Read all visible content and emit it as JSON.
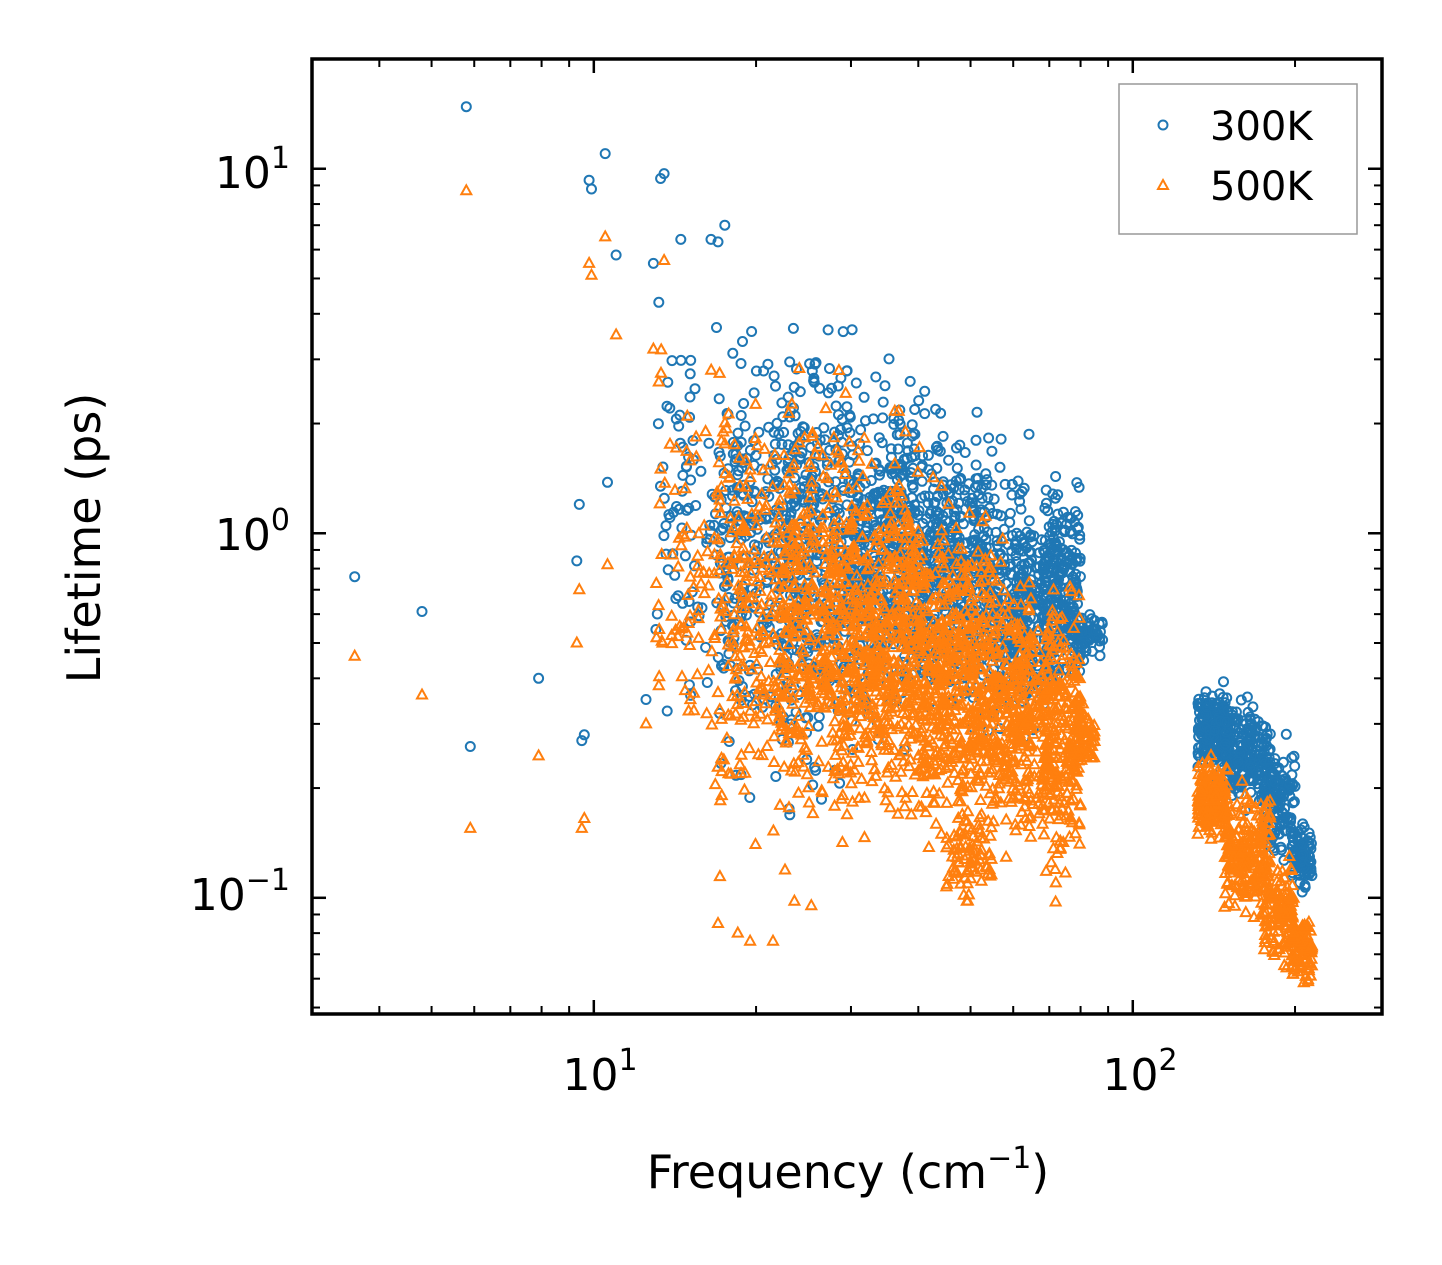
{
  "chart_data": {
    "type": "scatter",
    "title": "",
    "xlabel_main": "Frequency (cm",
    "xlabel_sup": "−1",
    "xlabel_end": ")",
    "ylabel": "Lifetime (ps)",
    "xscale": "log",
    "yscale": "log",
    "xlim": [
      3.0,
      290.0
    ],
    "ylim": [
      0.048,
      20.0
    ],
    "x_ticks": [
      {
        "base": "10",
        "exp": "1",
        "value": 10
      },
      {
        "base": "10",
        "exp": "2",
        "value": 100
      }
    ],
    "y_ticks": [
      {
        "base": "10",
        "exp": "1",
        "value": 10
      },
      {
        "base": "10",
        "exp": "0",
        "value": 1
      },
      {
        "base": "10",
        "exp": "−1",
        "value": 0.1
      }
    ],
    "legend_position": "top-right",
    "series": [
      {
        "name": "300K",
        "color": "#1f77b4",
        "marker": "circle-open",
        "outliers": [
          [
            3.6,
            0.76
          ],
          [
            4.8,
            0.61
          ],
          [
            5.8,
            14.8
          ],
          [
            5.9,
            0.26
          ],
          [
            7.9,
            0.4
          ],
          [
            9.3,
            0.84
          ],
          [
            9.4,
            1.2
          ],
          [
            9.5,
            0.27
          ],
          [
            9.6,
            0.28
          ],
          [
            9.8,
            9.3
          ],
          [
            9.9,
            8.8
          ],
          [
            10.5,
            11.0
          ],
          [
            10.6,
            1.38
          ],
          [
            11.0,
            5.8
          ],
          [
            12.5,
            0.35
          ],
          [
            12.9,
            5.5
          ],
          [
            13.2,
            4.3
          ],
          [
            13.3,
            9.4
          ],
          [
            13.5,
            9.7
          ],
          [
            14.5,
            6.4
          ],
          [
            16.5,
            6.4
          ],
          [
            17.0,
            6.3
          ],
          [
            17.5,
            7.0
          ]
        ],
        "clusters": [
          {
            "x": [
              13,
              22
            ],
            "y": [
              0.22,
              5.0
            ],
            "n": 160
          },
          {
            "x": [
              17,
              30
            ],
            "y": [
              0.13,
              5.5
            ],
            "n": 300
          },
          {
            "x": [
              22,
              40
            ],
            "y": [
              0.16,
              4.5
            ],
            "n": 450
          },
          {
            "x": [
              30,
              55
            ],
            "y": [
              0.22,
              3.0
            ],
            "n": 450
          },
          {
            "x": [
              40,
              65
            ],
            "y": [
              0.25,
              2.3
            ],
            "n": 330
          },
          {
            "x": [
              55,
              70
            ],
            "y": [
              0.22,
              1.5
            ],
            "n": 200
          },
          {
            "x": [
              68,
              80
            ],
            "y": [
              0.3,
              1.6
            ],
            "n": 260
          },
          {
            "x": [
              78,
              88
            ],
            "y": [
              0.42,
              0.65
            ],
            "n": 60
          },
          {
            "x": [
              132,
              150
            ],
            "y": [
              0.2,
              0.42
            ],
            "n": 180
          },
          {
            "x": [
              148,
              180
            ],
            "y": [
              0.16,
              0.38
            ],
            "n": 220
          },
          {
            "x": [
              175,
              200
            ],
            "y": [
              0.11,
              0.3
            ],
            "n": 130
          },
          {
            "x": [
              197,
              215
            ],
            "y": [
              0.1,
              0.17
            ],
            "n": 90
          }
        ]
      },
      {
        "name": "500K",
        "color": "#ff7f0e",
        "marker": "triangle-open",
        "outliers": [
          [
            3.6,
            0.46
          ],
          [
            4.8,
            0.36
          ],
          [
            5.8,
            8.7
          ],
          [
            5.9,
            0.155
          ],
          [
            7.9,
            0.245
          ],
          [
            9.3,
            0.5
          ],
          [
            9.4,
            0.7
          ],
          [
            9.5,
            0.155
          ],
          [
            9.6,
            0.165
          ],
          [
            9.8,
            5.5
          ],
          [
            9.9,
            5.1
          ],
          [
            10.5,
            6.5
          ],
          [
            10.6,
            0.82
          ],
          [
            11.0,
            3.5
          ],
          [
            12.5,
            0.3
          ],
          [
            12.9,
            3.2
          ],
          [
            13.2,
            2.6
          ],
          [
            13.3,
            1.5
          ],
          [
            13.5,
            5.6
          ],
          [
            17.0,
            0.085
          ],
          [
            18.5,
            0.08
          ],
          [
            19.5,
            0.076
          ],
          [
            21.5,
            0.076
          ]
        ],
        "clusters": [
          {
            "x": [
              13,
              22
            ],
            "y": [
              0.15,
              4.0
            ],
            "n": 150
          },
          {
            "x": [
              17,
              30
            ],
            "y": [
              0.085,
              3.5
            ],
            "n": 320
          },
          {
            "x": [
              22,
              40
            ],
            "y": [
              0.11,
              3.0
            ],
            "n": 500
          },
          {
            "x": [
              30,
              55
            ],
            "y": [
              0.13,
              1.8
            ],
            "n": 550
          },
          {
            "x": [
              40,
              65
            ],
            "y": [
              0.1,
              1.1
            ],
            "n": 420
          },
          {
            "x": [
              45,
              55
            ],
            "y": [
              0.085,
              0.2
            ],
            "n": 80
          },
          {
            "x": [
              55,
              70
            ],
            "y": [
              0.12,
              0.8
            ],
            "n": 200
          },
          {
            "x": [
              68,
              80
            ],
            "y": [
              0.09,
              0.9
            ],
            "n": 260
          },
          {
            "x": [
              78,
              85
            ],
            "y": [
              0.22,
              0.35
            ],
            "n": 50
          },
          {
            "x": [
              132,
              150
            ],
            "y": [
              0.13,
              0.27
            ],
            "n": 170
          },
          {
            "x": [
              148,
              180
            ],
            "y": [
              0.08,
              0.22
            ],
            "n": 220
          },
          {
            "x": [
              175,
              200
            ],
            "y": [
              0.058,
              0.14
            ],
            "n": 130
          },
          {
            "x": [
              197,
              215
            ],
            "y": [
              0.055,
              0.095
            ],
            "n": 90
          }
        ]
      }
    ]
  }
}
